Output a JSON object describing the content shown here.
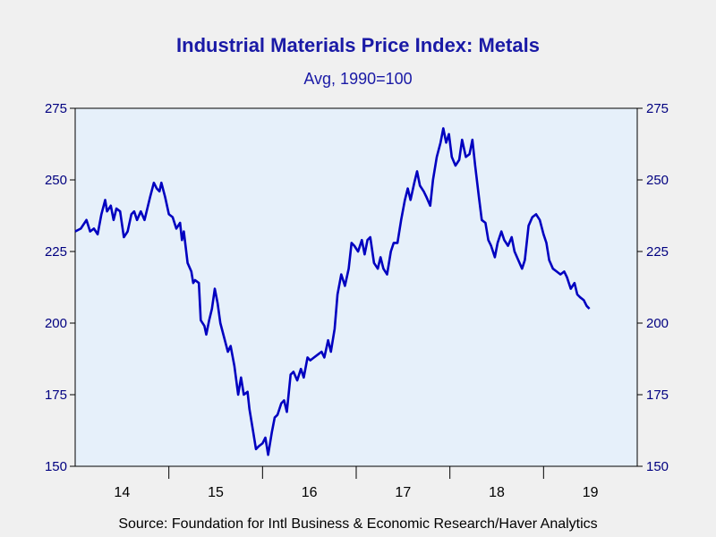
{
  "chart_data": {
    "type": "line",
    "title": "Industrial Materials Price Index: Metals",
    "subtitle": "Avg, 1990=100",
    "source": "Source:  Foundation for Intl Business & Economic Research/Haver Analytics",
    "ylim": [
      150,
      275
    ],
    "yticks": [
      "150",
      "175",
      "200",
      "225",
      "250",
      "275"
    ],
    "xlim": [
      2013.5,
      2019.5
    ],
    "year_ticks": [
      2014,
      2015,
      2016,
      2017,
      2018,
      2019
    ],
    "year_labels": [
      "14",
      "15",
      "16",
      "17",
      "18",
      "19"
    ],
    "line_color": "#0000c0",
    "points": [
      [
        2013.5,
        232
      ],
      [
        2013.56,
        233
      ],
      [
        2013.62,
        236
      ],
      [
        2013.66,
        232
      ],
      [
        2013.7,
        233
      ],
      [
        2013.74,
        231
      ],
      [
        2013.78,
        238
      ],
      [
        2013.82,
        243
      ],
      [
        2013.84,
        239
      ],
      [
        2013.88,
        241
      ],
      [
        2013.91,
        236
      ],
      [
        2013.94,
        240
      ],
      [
        2013.98,
        239
      ],
      [
        2014.02,
        230
      ],
      [
        2014.06,
        232
      ],
      [
        2014.1,
        238
      ],
      [
        2014.13,
        239
      ],
      [
        2014.16,
        236
      ],
      [
        2014.2,
        239
      ],
      [
        2014.24,
        236
      ],
      [
        2014.27,
        240
      ],
      [
        2014.3,
        244
      ],
      [
        2014.34,
        249
      ],
      [
        2014.37,
        247
      ],
      [
        2014.4,
        246
      ],
      [
        2014.42,
        249
      ],
      [
        2014.46,
        244
      ],
      [
        2014.5,
        238
      ],
      [
        2014.54,
        237
      ],
      [
        2014.58,
        233
      ],
      [
        2014.62,
        235
      ],
      [
        2014.64,
        229
      ],
      [
        2014.66,
        232
      ],
      [
        2014.7,
        221
      ],
      [
        2014.74,
        218
      ],
      [
        2014.76,
        214
      ],
      [
        2014.78,
        215
      ],
      [
        2014.82,
        214
      ],
      [
        2014.84,
        201
      ],
      [
        2014.88,
        199
      ],
      [
        2014.9,
        196
      ],
      [
        2014.93,
        201
      ],
      [
        2014.96,
        205
      ],
      [
        2014.99,
        212
      ],
      [
        2015.02,
        207
      ],
      [
        2015.05,
        200
      ],
      [
        2015.09,
        195
      ],
      [
        2015.13,
        190
      ],
      [
        2015.16,
        192
      ],
      [
        2015.2,
        185
      ],
      [
        2015.24,
        175
      ],
      [
        2015.27,
        181
      ],
      [
        2015.3,
        175
      ],
      [
        2015.34,
        176
      ],
      [
        2015.36,
        170
      ],
      [
        2015.4,
        162
      ],
      [
        2015.43,
        156
      ],
      [
        2015.46,
        157
      ],
      [
        2015.5,
        158
      ],
      [
        2015.53,
        160
      ],
      [
        2015.56,
        154
      ],
      [
        2015.6,
        162
      ],
      [
        2015.63,
        167
      ],
      [
        2015.66,
        168
      ],
      [
        2015.7,
        172
      ],
      [
        2015.73,
        173
      ],
      [
        2015.76,
        169
      ],
      [
        2015.8,
        182
      ],
      [
        2015.83,
        183
      ],
      [
        2015.87,
        180
      ],
      [
        2015.91,
        184
      ],
      [
        2015.94,
        181
      ],
      [
        2015.98,
        188
      ],
      [
        2016.01,
        187
      ],
      [
        2016.05,
        188
      ],
      [
        2016.09,
        189
      ],
      [
        2016.13,
        190
      ],
      [
        2016.16,
        188
      ],
      [
        2016.2,
        194
      ],
      [
        2016.23,
        190
      ],
      [
        2016.27,
        198
      ],
      [
        2016.3,
        210
      ],
      [
        2016.34,
        217
      ],
      [
        2016.38,
        213
      ],
      [
        2016.42,
        219
      ],
      [
        2016.45,
        228
      ],
      [
        2016.48,
        227
      ],
      [
        2016.52,
        225
      ],
      [
        2016.56,
        229
      ],
      [
        2016.59,
        224
      ],
      [
        2016.62,
        229
      ],
      [
        2016.65,
        230
      ],
      [
        2016.69,
        221
      ],
      [
        2016.73,
        219
      ],
      [
        2016.76,
        223
      ],
      [
        2016.79,
        219
      ],
      [
        2016.83,
        217
      ],
      [
        2016.87,
        225
      ],
      [
        2016.9,
        228
      ],
      [
        2016.94,
        228
      ],
      [
        2016.98,
        236
      ],
      [
        2017.02,
        243
      ],
      [
        2017.05,
        247
      ],
      [
        2017.08,
        243
      ],
      [
        2017.12,
        249
      ],
      [
        2017.15,
        253
      ],
      [
        2017.18,
        248
      ],
      [
        2017.22,
        246
      ],
      [
        2017.25,
        244
      ],
      [
        2017.29,
        241
      ],
      [
        2017.32,
        250
      ],
      [
        2017.36,
        258
      ],
      [
        2017.4,
        263
      ],
      [
        2017.43,
        268
      ],
      [
        2017.46,
        263
      ],
      [
        2017.49,
        266
      ],
      [
        2017.52,
        258
      ],
      [
        2017.56,
        255
      ],
      [
        2017.6,
        257
      ],
      [
        2017.63,
        264
      ],
      [
        2017.67,
        258
      ],
      [
        2017.71,
        259
      ],
      [
        2017.74,
        264
      ],
      [
        2017.77,
        255
      ],
      [
        2017.81,
        244
      ],
      [
        2017.84,
        236
      ],
      [
        2017.88,
        235
      ],
      [
        2017.91,
        229
      ],
      [
        2017.94,
        227
      ],
      [
        2017.98,
        223
      ],
      [
        2018.01,
        228
      ],
      [
        2018.05,
        232
      ],
      [
        2018.08,
        229
      ],
      [
        2018.12,
        227
      ],
      [
        2018.16,
        230
      ],
      [
        2018.19,
        225
      ],
      [
        2018.23,
        222
      ],
      [
        2018.27,
        219
      ],
      [
        2018.3,
        222
      ],
      [
        2018.34,
        234
      ],
      [
        2018.38,
        237
      ],
      [
        2018.42,
        238
      ],
      [
        2018.46,
        236
      ],
      [
        2018.5,
        231
      ],
      [
        2018.53,
        228
      ],
      [
        2018.56,
        222
      ],
      [
        2018.6,
        219
      ],
      [
        2018.64,
        218
      ],
      [
        2018.68,
        217
      ],
      [
        2018.72,
        218
      ],
      [
        2018.75,
        216
      ],
      [
        2018.79,
        212
      ],
      [
        2018.83,
        214
      ],
      [
        2018.86,
        210
      ],
      [
        2018.89,
        209
      ],
      [
        2018.93,
        208
      ],
      [
        2018.96,
        206
      ],
      [
        2018.99,
        205
      ]
    ]
  }
}
